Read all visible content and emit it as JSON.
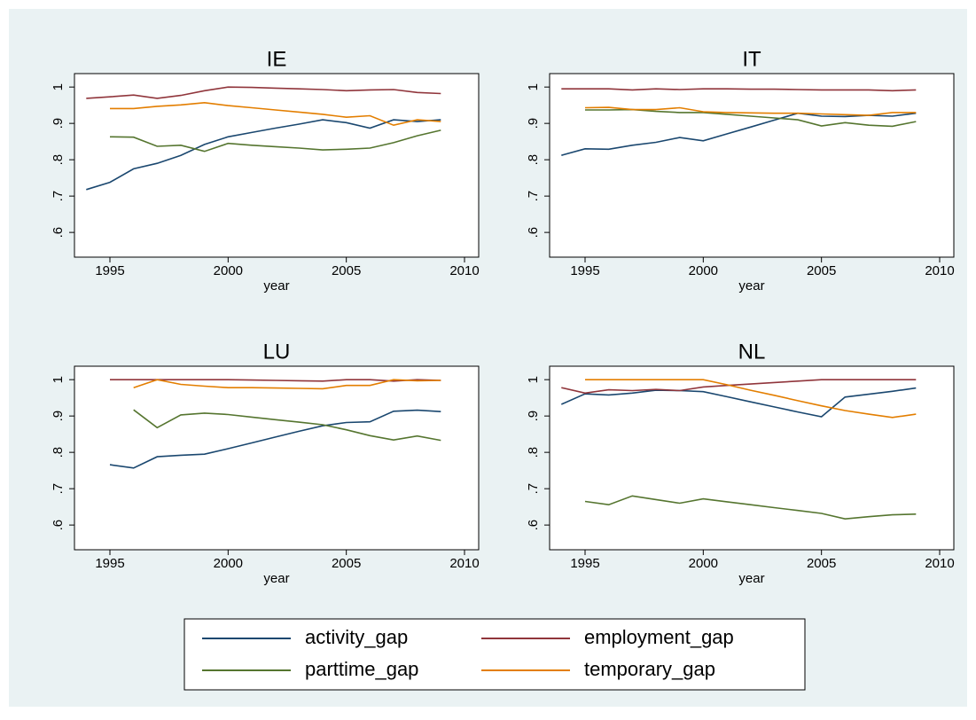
{
  "chart_data": [
    {
      "type": "line",
      "title": "IE",
      "xlabel": "year",
      "x": [
        1994,
        1995,
        1996,
        1997,
        1998,
        1999,
        2000,
        2001,
        2002,
        2003,
        2004,
        2005,
        2006,
        2007,
        2008,
        2009
      ],
      "xlim": [
        1993.5,
        2010.6
      ],
      "xticks": [
        1995,
        2000,
        2005,
        2010
      ],
      "ylim": [
        0.532,
        1.037
      ],
      "yticks": [
        {
          "value": 0.6,
          "label": ".6"
        },
        {
          "value": 0.7,
          "label": ".7"
        },
        {
          "value": 0.8,
          "label": ".8"
        },
        {
          "value": 0.9,
          "label": ".9"
        },
        1
      ],
      "series": [
        {
          "name": "activity_gap",
          "color": "#1a476f",
          "values": [
            0.718,
            0.738,
            0.775,
            0.79,
            0.812,
            0.842,
            0.863,
            0.875,
            0.887,
            0.898,
            0.91,
            0.902,
            0.887,
            0.91,
            0.905,
            0.91
          ]
        },
        {
          "name": "employment_gap",
          "color": "#90353b",
          "values": [
            0.969,
            0.973,
            0.978,
            0.969,
            0.977,
            0.99,
            1.0,
            0.999,
            0.997,
            0.995,
            0.993,
            0.99,
            0.992,
            0.993,
            0.985,
            0.982
          ]
        },
        {
          "name": "parttime_gap",
          "color": "#55752f",
          "values": [
            null,
            0.863,
            0.862,
            0.837,
            0.84,
            0.823,
            0.845,
            0.84,
            0.836,
            0.832,
            0.827,
            0.829,
            0.832,
            0.847,
            0.866,
            0.881
          ]
        },
        {
          "name": "temporary_gap",
          "color": "#e37e00",
          "values": [
            null,
            0.941,
            0.941,
            0.947,
            0.951,
            0.957,
            0.949,
            0.943,
            0.937,
            0.931,
            0.925,
            0.917,
            0.921,
            0.895,
            0.91,
            0.905
          ]
        }
      ]
    },
    {
      "type": "line",
      "title": "IT",
      "xlabel": "year",
      "x": [
        1994,
        1995,
        1996,
        1997,
        1998,
        1999,
        2000,
        2001,
        2002,
        2003,
        2004,
        2005,
        2006,
        2007,
        2008,
        2009
      ],
      "xlim": [
        1993.5,
        2010.6
      ],
      "xticks": [
        1995,
        2000,
        2005,
        2010
      ],
      "ylim": [
        0.532,
        1.037
      ],
      "yticks": [
        {
          "value": 0.6,
          "label": ".6"
        },
        {
          "value": 0.7,
          "label": ".7"
        },
        {
          "value": 0.8,
          "label": ".8"
        },
        {
          "value": 0.9,
          "label": ".9"
        },
        1
      ],
      "series": [
        {
          "name": "activity_gap",
          "color": "#1a476f",
          "values": [
            0.812,
            0.83,
            0.829,
            0.84,
            0.848,
            0.861,
            0.852,
            0.871,
            0.89,
            0.909,
            0.928,
            0.92,
            0.919,
            0.922,
            0.92,
            0.928
          ]
        },
        {
          "name": "employment_gap",
          "color": "#90353b",
          "values": [
            0.995,
            0.995,
            0.995,
            0.992,
            0.995,
            0.993,
            0.995,
            0.995,
            0.994,
            0.994,
            0.993,
            0.992,
            0.992,
            0.992,
            0.99,
            0.992
          ]
        },
        {
          "name": "parttime_gap",
          "color": "#55752f",
          "values": [
            null,
            0.937,
            0.937,
            0.938,
            0.933,
            0.93,
            0.93,
            0.925,
            0.92,
            0.915,
            0.91,
            0.893,
            0.902,
            0.895,
            0.892,
            0.905
          ]
        },
        {
          "name": "temporary_gap",
          "color": "#e37e00",
          "values": [
            null,
            0.943,
            0.944,
            0.938,
            0.938,
            0.943,
            0.932,
            0.93,
            0.929,
            0.928,
            0.928,
            0.926,
            0.924,
            0.922,
            0.93,
            0.93
          ]
        }
      ]
    },
    {
      "type": "line",
      "title": "LU",
      "xlabel": "year",
      "x": [
        1994,
        1995,
        1996,
        1997,
        1998,
        1999,
        2000,
        2001,
        2002,
        2003,
        2004,
        2005,
        2006,
        2007,
        2008,
        2009
      ],
      "xlim": [
        1993.5,
        2010.6
      ],
      "xticks": [
        1995,
        2000,
        2005,
        2010
      ],
      "ylim": [
        0.532,
        1.037
      ],
      "yticks": [
        {
          "value": 0.6,
          "label": ".6"
        },
        {
          "value": 0.7,
          "label": ".7"
        },
        {
          "value": 0.8,
          "label": ".8"
        },
        {
          "value": 0.9,
          "label": ".9"
        },
        1
      ],
      "series": [
        {
          "name": "activity_gap",
          "color": "#1a476f",
          "values": [
            null,
            0.766,
            0.757,
            0.788,
            0.792,
            0.795,
            0.81,
            0.826,
            0.842,
            0.858,
            0.873,
            0.882,
            0.884,
            0.913,
            0.916,
            0.912
          ]
        },
        {
          "name": "employment_gap",
          "color": "#90353b",
          "values": [
            null,
            1.0,
            1.0,
            1.0,
            1.0,
            1.0,
            1.0,
            0.999,
            0.998,
            0.997,
            0.996,
            1.0,
            1.0,
            0.996,
            1.0,
            0.998
          ]
        },
        {
          "name": "parttime_gap",
          "color": "#55752f",
          "values": [
            null,
            null,
            0.917,
            0.868,
            0.903,
            0.908,
            0.904,
            0.897,
            0.89,
            0.883,
            0.876,
            0.862,
            0.846,
            0.834,
            0.845,
            0.833
          ]
        },
        {
          "name": "temporary_gap",
          "color": "#e37e00",
          "values": [
            null,
            null,
            0.978,
            1.0,
            0.987,
            0.982,
            0.978,
            0.978,
            0.977,
            0.976,
            0.975,
            0.984,
            0.984,
            1.0,
            0.997,
            0.998
          ]
        }
      ]
    },
    {
      "type": "line",
      "title": "NL",
      "xlabel": "year",
      "x": [
        1994,
        1995,
        1996,
        1997,
        1998,
        1999,
        2000,
        2001,
        2002,
        2003,
        2004,
        2005,
        2006,
        2007,
        2008,
        2009
      ],
      "xlim": [
        1993.5,
        2010.6
      ],
      "xticks": [
        1995,
        2000,
        2005,
        2010
      ],
      "ylim": [
        0.532,
        1.037
      ],
      "yticks": [
        {
          "value": 0.6,
          "label": ".6"
        },
        {
          "value": 0.7,
          "label": ".7"
        },
        {
          "value": 0.8,
          "label": ".8"
        },
        {
          "value": 0.9,
          "label": ".9"
        },
        1
      ],
      "series": [
        {
          "name": "activity_gap",
          "color": "#1a476f",
          "values": [
            0.932,
            0.961,
            0.958,
            0.963,
            0.971,
            0.97,
            0.967,
            0.953,
            0.939,
            0.925,
            0.911,
            0.898,
            0.952,
            0.96,
            0.968,
            0.977
          ]
        },
        {
          "name": "employment_gap",
          "color": "#90353b",
          "values": [
            0.978,
            0.963,
            0.972,
            0.97,
            0.973,
            0.97,
            0.98,
            0.984,
            0.988,
            0.992,
            0.996,
            1.0,
            1.0,
            1.0,
            1.0,
            1.0
          ]
        },
        {
          "name": "parttime_gap",
          "color": "#55752f",
          "values": [
            null,
            0.665,
            0.656,
            0.68,
            0.67,
            0.66,
            0.672,
            0.664,
            0.656,
            0.648,
            0.64,
            0.632,
            0.617,
            0.623,
            0.628,
            0.63
          ]
        },
        {
          "name": "temporary_gap",
          "color": "#e37e00",
          "values": [
            null,
            1.0,
            1.0,
            1.0,
            1.0,
            1.0,
            1.0,
            0.986,
            0.971,
            0.957,
            0.942,
            0.928,
            0.915,
            0.905,
            0.896,
            0.905
          ]
        }
      ]
    }
  ]
}
